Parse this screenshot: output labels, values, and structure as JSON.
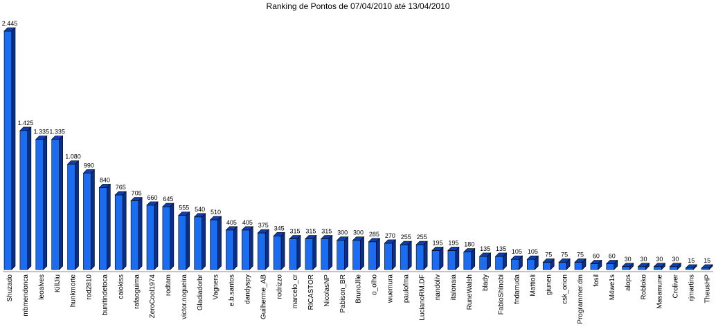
{
  "chart_data": {
    "type": "bar",
    "title": "Ranking de Pontos de 07/04/2010 até 13/04/2010",
    "xlabel": "",
    "ylabel": "",
    "ylim": [
      0,
      2500
    ],
    "grid": false,
    "legend": "none",
    "bar_color": "#1a6cf0",
    "bar_dark_color": "#0a2f8a",
    "bar_top_color": "#0d3fae",
    "categories": [
      "Shuzado",
      "mbmendonca",
      "leoalves",
      "KillJiu",
      "hunkmorte",
      "rod2810",
      "bunitindetoca",
      "caiokiss",
      "rafaoguima",
      "ZeroCool1974",
      "rodtam",
      "victor.nogueira",
      "Gladiadorbr",
      "Vagners",
      "e.b.santos",
      "dandyspy",
      "Guilherme_AB",
      "rodrizzo",
      "marcelo_cr",
      "RICASTOR",
      "NicolasNP",
      "Pabison_BR",
      "BrunoJlle",
      "o_olho",
      "wuemura",
      "paulofma",
      "LucianoRM.DF",
      "nandoliv",
      "italonaia",
      "RuneWalsh",
      "blady",
      "FabioShinobi",
      "fndarruda",
      "Mattioli",
      "giunen",
      "csk_orion",
      "Programmer.dm",
      "fosil",
      "M4we1s",
      "alops",
      "Robloko",
      "Masamune",
      "Croliver",
      "rjmartins",
      "TheusHP"
    ],
    "values": [
      2445,
      1425,
      1335,
      1335,
      1080,
      990,
      840,
      765,
      705,
      660,
      645,
      555,
      540,
      510,
      405,
      405,
      375,
      345,
      315,
      315,
      315,
      300,
      300,
      285,
      270,
      255,
      255,
      195,
      195,
      180,
      135,
      135,
      105,
      105,
      75,
      75,
      75,
      60,
      60,
      30,
      30,
      30,
      30,
      15,
      15
    ],
    "value_labels": [
      "2.445",
      "1.425",
      "1.335",
      "1.335",
      "1.080",
      "990",
      "840",
      "765",
      "705",
      "660",
      "645",
      "555",
      "540",
      "510",
      "405",
      "405",
      "375",
      "345",
      "315",
      "315",
      "315",
      "300",
      "300",
      "285",
      "270",
      "255",
      "255",
      "195",
      "195",
      "180",
      "135",
      "135",
      "105",
      "105",
      "75",
      "75",
      "75",
      "60",
      "60",
      "30",
      "30",
      "30",
      "30",
      "15",
      "15"
    ]
  }
}
